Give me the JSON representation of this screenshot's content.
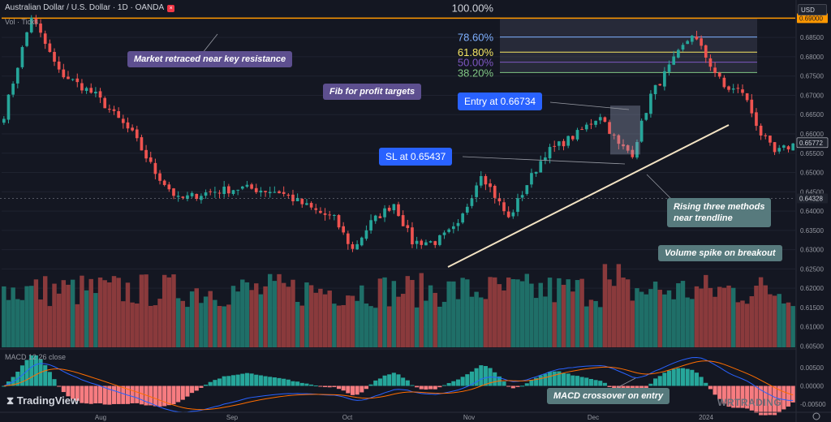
{
  "header": {
    "title": "Australian Dollar / U.S. Dollar · 1D · OANDA",
    "sub": "Vol · Ticks",
    "currency": "USD"
  },
  "macd_label": "MACD 12 26 close",
  "logos": {
    "tradingview": "TradingView",
    "watermark": "WRTRADING"
  },
  "annotations": {
    "resistance": "Market retraced near key resistance",
    "fib": "Fib for profit targets",
    "entry": "Entry at 0.66734",
    "sl": "SL at 0.65437",
    "rising": [
      "Rising three methods",
      "near trendline"
    ],
    "volume": "Volume spike on breakout",
    "macd": "MACD crossover on entry"
  },
  "colors": {
    "up": "#26a69a",
    "down": "#ef5350",
    "bg": "#141722",
    "resistance": "#ff9800",
    "trendline": "#f3e3c3"
  },
  "chart_data": {
    "type": "candlestick",
    "symbol": "AUDUSD",
    "timeframe": "1D",
    "ylim": [
      0.603,
      0.6905
    ],
    "y_ticks": [
      "0.68500",
      "0.68000",
      "0.67500",
      "0.67000",
      "0.66500",
      "0.66000",
      "0.65500",
      "0.65000",
      "0.64500",
      "0.64000",
      "0.63500",
      "0.63000",
      "0.62500",
      "0.62000",
      "0.61500",
      "0.61000",
      "0.60500"
    ],
    "x_ticks": [
      "Aug",
      "Sep",
      "Oct",
      "Nov",
      "Dec",
      "2024"
    ],
    "price_labels": {
      "resistance": "0.69000",
      "last": "0.65772",
      "crosshair": "0.64328"
    },
    "fib_levels": [
      {
        "label": "100.00%",
        "price": 0.69,
        "color": "#d1d4dc"
      },
      {
        "label": "78.60%",
        "price": 0.6851,
        "color": "#7eb0ff"
      },
      {
        "label": "61.80%",
        "price": 0.6812,
        "color": "#f5e663"
      },
      {
        "label": "50.00%",
        "price": 0.6786,
        "color": "#7e57c2"
      },
      {
        "label": "38.20%",
        "price": 0.6759,
        "color": "#81c784"
      }
    ],
    "entry_price": 0.66734,
    "stop_loss": 0.65437,
    "anchors": [
      [
        0,
        0.665
      ],
      [
        6,
        0.6905
      ],
      [
        12,
        0.676
      ],
      [
        20,
        0.67
      ],
      [
        28,
        0.66
      ],
      [
        33,
        0.65
      ],
      [
        38,
        0.643
      ],
      [
        45,
        0.645
      ],
      [
        52,
        0.646
      ],
      [
        60,
        0.645
      ],
      [
        68,
        0.64
      ],
      [
        72,
        0.638
      ],
      [
        76,
        0.63
      ],
      [
        80,
        0.637
      ],
      [
        85,
        0.642
      ],
      [
        89,
        0.632
      ],
      [
        94,
        0.632
      ],
      [
        99,
        0.636
      ],
      [
        104,
        0.65
      ],
      [
        110,
        0.638
      ],
      [
        114,
        0.647
      ],
      [
        118,
        0.655
      ],
      [
        125,
        0.66
      ],
      [
        130,
        0.665
      ],
      [
        134,
        0.657
      ],
      [
        137,
        0.655
      ],
      [
        141,
        0.67
      ],
      [
        146,
        0.679
      ],
      [
        150,
        0.686
      ],
      [
        153,
        0.68
      ],
      [
        157,
        0.672
      ],
      [
        161,
        0.671
      ],
      [
        165,
        0.66
      ],
      [
        168,
        0.655
      ],
      [
        172,
        0.6572
      ]
    ],
    "volume_ylim": [
      0,
      100
    ],
    "macd_ylim": [
      -0.0065,
      0.0065
    ],
    "macd_ticks": [
      "0.00500",
      "0.00000",
      "-0.00500"
    ]
  }
}
